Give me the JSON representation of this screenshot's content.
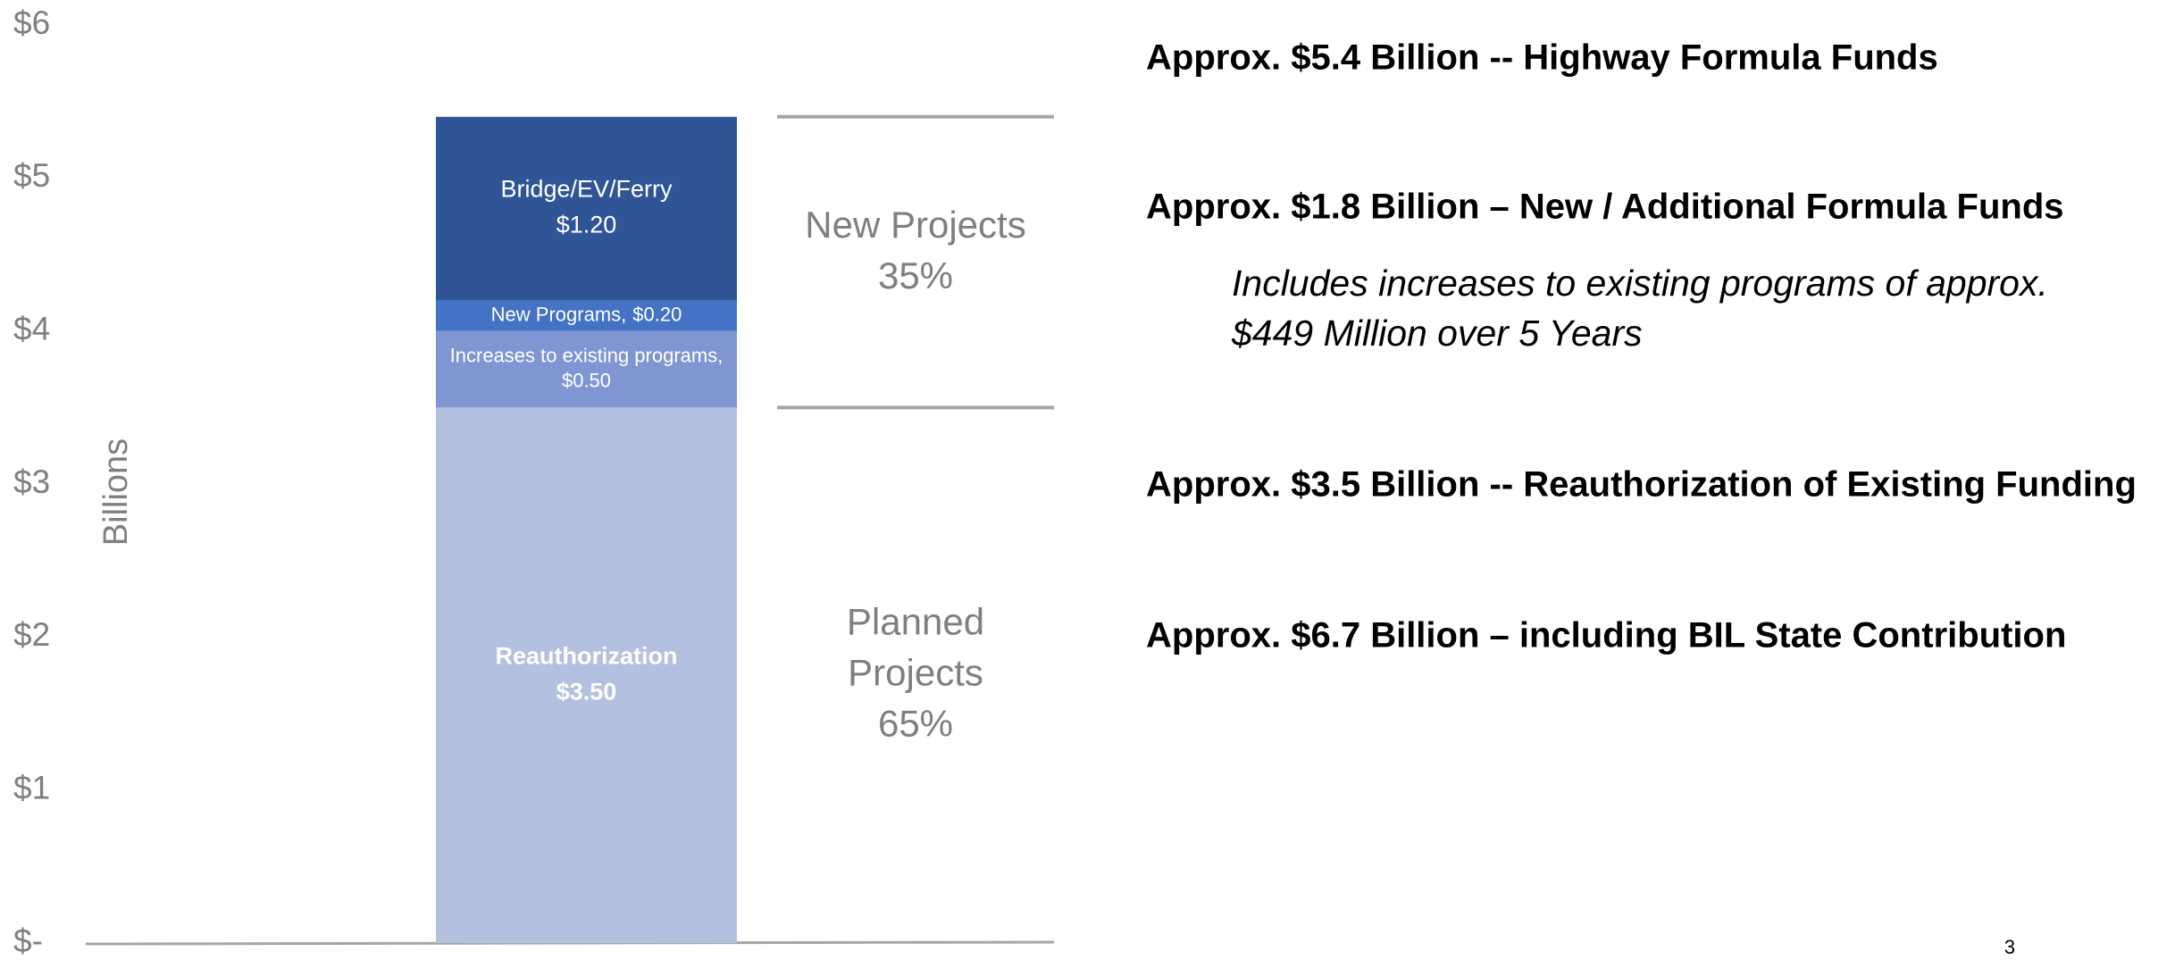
{
  "chart_data": {
    "type": "stacked_bar",
    "categories": [
      null
    ],
    "y_axis_label": "Billions",
    "ylim": [
      0,
      6
    ],
    "yticks": [
      {
        "value": 0,
        "label": "$-"
      },
      {
        "value": 1,
        "label": "$1"
      },
      {
        "value": 2,
        "label": "$2"
      },
      {
        "value": 3,
        "label": "$3"
      },
      {
        "value": 4,
        "label": "$4"
      },
      {
        "value": 5,
        "label": "$5"
      },
      {
        "value": 6,
        "label": "$6"
      }
    ],
    "series": [
      {
        "name": "Reauthorization",
        "color": "#b4c0e0",
        "values": [
          3.5
        ],
        "value_labels": [
          "$3.50"
        ]
      },
      {
        "name": "Increases to existing programs,",
        "color": "#7f96d2",
        "values": [
          0.5
        ],
        "value_labels": [
          "$0.50"
        ]
      },
      {
        "name": "New Programs,",
        "color": "#4472c4",
        "values": [
          0.2
        ],
        "value_labels": [
          "$0.20"
        ]
      },
      {
        "name": "Bridge/EV/Ferry",
        "color": "#2f5597",
        "values": [
          1.2
        ],
        "value_labels": [
          "$1.20"
        ]
      }
    ],
    "brackets": [
      {
        "lines": [
          "New Projects",
          "35%"
        ]
      },
      {
        "lines": [
          "Planned",
          "Projects",
          "65%"
        ]
      }
    ],
    "notes": [
      {
        "text": "Approx. $5.4 Billion -- Highway Formula Funds",
        "style": "bold"
      },
      {
        "text": "Approx. $1.8 Billion – New / Additional Formula Funds",
        "style": "bold"
      },
      {
        "text": "Includes increases to existing programs of approx.",
        "style": "italic"
      },
      {
        "text": "$449 Million over 5 Years",
        "style": "italic"
      },
      {
        "text": "Approx. $3.5 Billion -- Reauthorization of Existing Funding",
        "style": "bold"
      },
      {
        "text": "Approx. $6.7 Billion – including BIL State Contribution",
        "style": "bold"
      }
    ],
    "page_number": "3"
  }
}
